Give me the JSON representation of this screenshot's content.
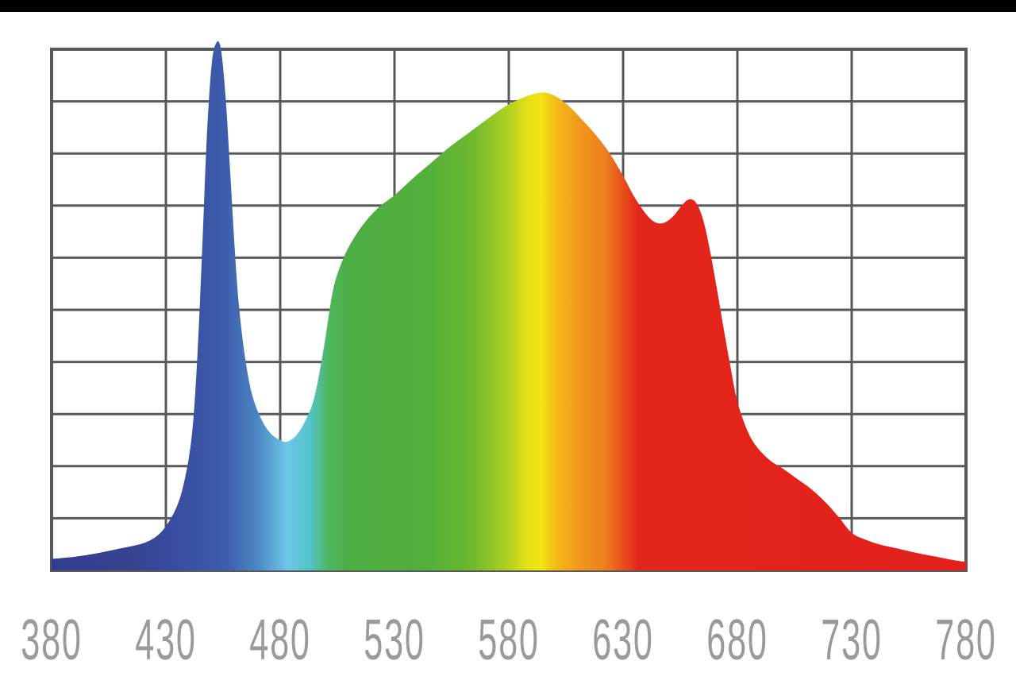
{
  "page": {
    "background_color": "#ffffff",
    "top_bar_color": "#000000"
  },
  "chart_data": {
    "type": "area",
    "title": "",
    "xlabel": "",
    "ylabel": "",
    "x_ticks": [
      "380",
      "430",
      "480",
      "530",
      "580",
      "630",
      "680",
      "730",
      "780"
    ],
    "xlim": [
      380,
      780
    ],
    "ylim": [
      0,
      1
    ],
    "grid": {
      "rows": 10,
      "cols": 8,
      "on": true,
      "color": "#58595b",
      "border_color": "#58595b",
      "background": "#ffffff"
    },
    "axis_label_color": "#9a9a9c",
    "legend": "none",
    "series": [
      {
        "name": "led-spectral-power-distribution",
        "fill": "spectrum-gradient",
        "points": [
          [
            380,
            0.022
          ],
          [
            390,
            0.026
          ],
          [
            400,
            0.033
          ],
          [
            410,
            0.042
          ],
          [
            420,
            0.052
          ],
          [
            426,
            0.066
          ],
          [
            430,
            0.085
          ],
          [
            434,
            0.115
          ],
          [
            437,
            0.152
          ],
          [
            440,
            0.215
          ],
          [
            442,
            0.29
          ],
          [
            444,
            0.43
          ],
          [
            446,
            0.63
          ],
          [
            448,
            0.84
          ],
          [
            450,
            0.97
          ],
          [
            452,
            1.012
          ],
          [
            454,
            1.002
          ],
          [
            456,
            0.915
          ],
          [
            458,
            0.775
          ],
          [
            460,
            0.625
          ],
          [
            462,
            0.505
          ],
          [
            465,
            0.398
          ],
          [
            468,
            0.333
          ],
          [
            472,
            0.288
          ],
          [
            476,
            0.262
          ],
          [
            480,
            0.25
          ],
          [
            483,
            0.247
          ],
          [
            487,
            0.259
          ],
          [
            491,
            0.287
          ],
          [
            495,
            0.333
          ],
          [
            499,
            0.425
          ],
          [
            503,
            0.535
          ],
          [
            507,
            0.592
          ],
          [
            512,
            0.636
          ],
          [
            518,
            0.673
          ],
          [
            524,
            0.7
          ],
          [
            530,
            0.72
          ],
          [
            538,
            0.752
          ],
          [
            546,
            0.782
          ],
          [
            554,
            0.812
          ],
          [
            562,
            0.838
          ],
          [
            570,
            0.864
          ],
          [
            578,
            0.889
          ],
          [
            584,
            0.903
          ],
          [
            590,
            0.913
          ],
          [
            595,
            0.917
          ],
          [
            600,
            0.911
          ],
          [
            606,
            0.892
          ],
          [
            612,
            0.865
          ],
          [
            618,
            0.836
          ],
          [
            624,
            0.801
          ],
          [
            630,
            0.757
          ],
          [
            635,
            0.716
          ],
          [
            640,
            0.684
          ],
          [
            644,
            0.668
          ],
          [
            648,
            0.667
          ],
          [
            652,
            0.68
          ],
          [
            656,
            0.702
          ],
          [
            659,
            0.712
          ],
          [
            662,
            0.705
          ],
          [
            665,
            0.673
          ],
          [
            668,
            0.614
          ],
          [
            671,
            0.541
          ],
          [
            674,
            0.464
          ],
          [
            677,
            0.39
          ],
          [
            680,
            0.324
          ],
          [
            684,
            0.272
          ],
          [
            688,
            0.24
          ],
          [
            694,
            0.212
          ],
          [
            700,
            0.195
          ],
          [
            706,
            0.176
          ],
          [
            712,
            0.157
          ],
          [
            718,
            0.133
          ],
          [
            724,
            0.104
          ],
          [
            730,
            0.072
          ],
          [
            736,
            0.059
          ],
          [
            742,
            0.05
          ],
          [
            750,
            0.042
          ],
          [
            758,
            0.034
          ],
          [
            766,
            0.027
          ],
          [
            773,
            0.021
          ],
          [
            780,
            0.016
          ]
        ]
      }
    ],
    "gradient_stops": [
      [
        0,
        "#343c90"
      ],
      [
        8,
        "#36428f"
      ],
      [
        15,
        "#3a50a3"
      ],
      [
        19,
        "#3d5cab"
      ],
      [
        22.5,
        "#4c86c3"
      ],
      [
        25.8,
        "#6ec7e9"
      ],
      [
        28.2,
        "#55c4cb"
      ],
      [
        30.3,
        "#4eb75e"
      ],
      [
        32.5,
        "#4cad43"
      ],
      [
        41,
        "#52af3a"
      ],
      [
        46,
        "#6eb92f"
      ],
      [
        49.5,
        "#a8ce25"
      ],
      [
        52,
        "#e3df15"
      ],
      [
        53.5,
        "#f2e414"
      ],
      [
        55.5,
        "#f3b517"
      ],
      [
        58,
        "#f0961c"
      ],
      [
        60.5,
        "#ee7f1e"
      ],
      [
        62.3,
        "#e9531d"
      ],
      [
        64.2,
        "#e3261b"
      ],
      [
        100,
        "#e41f1c"
      ]
    ]
  }
}
